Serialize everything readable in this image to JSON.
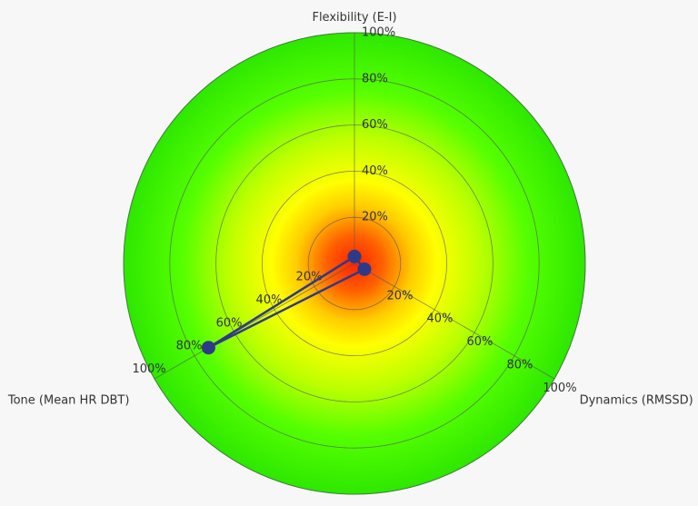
{
  "chart_data": {
    "type": "radar",
    "categories": [
      "Flexibility (E-I)",
      "Dynamics (RMSSD)",
      "Tone (Mean HR DBT)"
    ],
    "series": [
      {
        "color": "#2e3a87",
        "values": [
          3,
          5,
          73
        ]
      }
    ],
    "rlim": [
      0,
      100
    ],
    "rticks": [
      {
        "value": 20,
        "label": "20%"
      },
      {
        "value": 40,
        "label": "40%"
      },
      {
        "value": 60,
        "label": "60%"
      },
      {
        "value": 80,
        "label": "80%"
      },
      {
        "value": 100,
        "label": "100%"
      }
    ],
    "grid": true
  }
}
